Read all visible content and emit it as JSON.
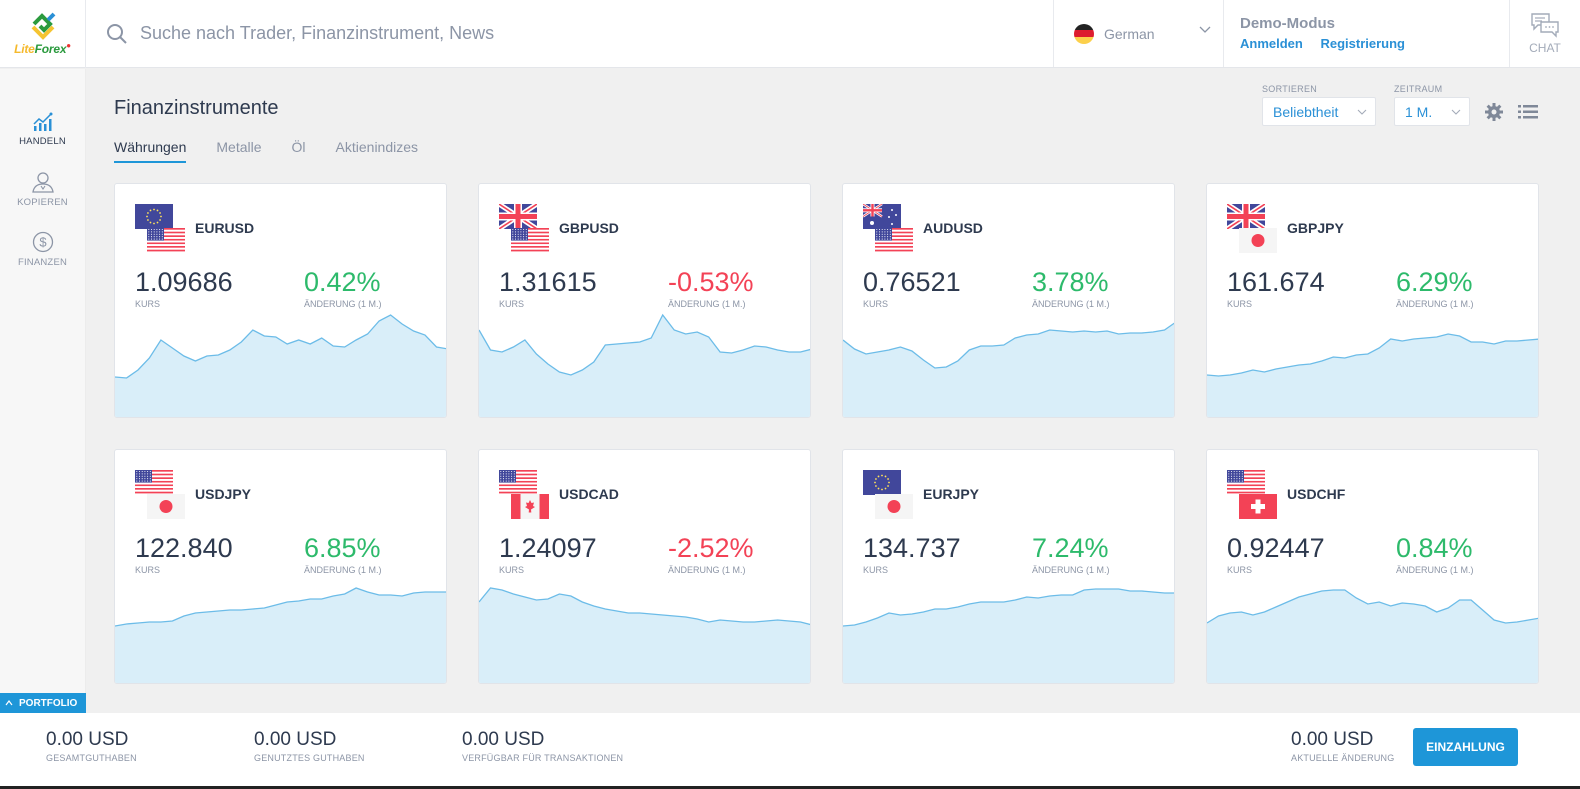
{
  "header": {
    "logo": {
      "part1": "Lite",
      "part2": "Forex"
    },
    "search": {
      "placeholder": "Suche nach Trader, Finanzinstrument, News",
      "icon": "search-icon"
    },
    "language": {
      "label": "German",
      "icon": "de-flag-icon"
    },
    "account": {
      "mode": "Demo-Modus",
      "login": "Anmelden",
      "register": "Registrierung"
    },
    "chat": {
      "label": "CHAT",
      "icon": "chat-icon"
    }
  },
  "sidebar": {
    "items": [
      {
        "label": "HANDELN",
        "icon": "trading-chart-icon",
        "active": true
      },
      {
        "label": "KOPIEREN",
        "icon": "user-icon",
        "active": false
      },
      {
        "label": "FINANZEN",
        "icon": "dollar-icon",
        "active": false
      }
    ],
    "portfolio": "PORTFOLIO"
  },
  "main": {
    "title": "Finanzinstrumente",
    "tabs": [
      {
        "label": "Währungen",
        "active": true
      },
      {
        "label": "Metalle",
        "active": false
      },
      {
        "label": "Öl",
        "active": false
      },
      {
        "label": "Aktienindizes",
        "active": false
      }
    ],
    "sort": {
      "label": "SORTIEREN",
      "value": "Beliebtheit"
    },
    "period": {
      "label": "ZEITRAUM",
      "value": "1 M."
    },
    "rate_label": "KURS",
    "change_label": "ÄNDERUNG (1 M.)"
  },
  "instruments": [
    {
      "pair": "EURUSD",
      "flags": [
        "eu",
        "us"
      ],
      "rate": "1.09686",
      "change": "0.42%",
      "direction": "up"
    },
    {
      "pair": "GBPUSD",
      "flags": [
        "gb",
        "us"
      ],
      "rate": "1.31615",
      "change": "-0.53%",
      "direction": "down"
    },
    {
      "pair": "AUDUSD",
      "flags": [
        "au",
        "us"
      ],
      "rate": "0.76521",
      "change": "3.78%",
      "direction": "up"
    },
    {
      "pair": "GBPJPY",
      "flags": [
        "gb",
        "jp"
      ],
      "rate": "161.674",
      "change": "6.29%",
      "direction": "up"
    },
    {
      "pair": "USDJPY",
      "flags": [
        "us",
        "jp"
      ],
      "rate": "122.840",
      "change": "6.85%",
      "direction": "up"
    },
    {
      "pair": "USDCAD",
      "flags": [
        "us",
        "ca"
      ],
      "rate": "1.24097",
      "change": "-2.52%",
      "direction": "down"
    },
    {
      "pair": "EURJPY",
      "flags": [
        "eu",
        "jp"
      ],
      "rate": "134.737",
      "change": "7.24%",
      "direction": "up"
    },
    {
      "pair": "USDCHF",
      "flags": [
        "us",
        "ch"
      ],
      "rate": "0.92447",
      "change": "0.84%",
      "direction": "up"
    }
  ],
  "sparklines": [
    [
      65,
      66,
      58,
      46,
      28,
      36,
      44,
      49,
      44,
      43,
      38,
      30,
      18,
      24,
      25,
      32,
      28,
      32,
      26,
      34,
      35,
      28,
      22,
      9,
      3,
      12,
      19,
      23,
      35,
      37
    ],
    [
      18,
      38,
      40,
      35,
      28,
      42,
      52,
      60,
      63,
      58,
      50,
      33,
      32,
      31,
      30,
      26,
      3,
      18,
      22,
      20,
      25,
      40,
      41,
      38,
      34,
      35,
      38,
      40,
      40,
      37
    ],
    [
      28,
      37,
      42,
      40,
      38,
      35,
      39,
      48,
      56,
      55,
      49,
      38,
      34,
      34,
      33,
      26,
      23,
      22,
      18,
      19,
      20,
      19,
      20,
      19,
      22,
      21,
      21,
      20,
      18,
      10
    ],
    [
      63,
      64,
      63,
      61,
      58,
      60,
      57,
      55,
      53,
      52,
      49,
      45,
      46,
      43,
      42,
      36,
      27,
      29,
      27,
      26,
      25,
      22,
      24,
      30,
      30,
      32,
      29,
      29,
      28,
      27
    ],
    [
      48,
      46,
      45,
      44,
      44,
      43,
      38,
      35,
      34,
      33,
      32,
      32,
      31,
      30,
      27,
      24,
      23,
      21,
      21,
      18,
      16,
      10,
      14,
      17,
      17,
      18,
      15,
      14,
      14,
      14
    ],
    [
      24,
      10,
      12,
      16,
      19,
      22,
      21,
      16,
      18,
      24,
      28,
      31,
      33,
      35,
      35,
      36,
      37,
      38,
      39,
      41,
      44,
      42,
      43,
      44,
      44,
      43,
      42,
      43,
      44,
      47
    ],
    [
      48,
      47,
      44,
      40,
      35,
      37,
      36,
      34,
      31,
      31,
      29,
      26,
      24,
      24,
      24,
      22,
      19,
      20,
      18,
      17,
      17,
      12,
      11,
      11,
      11,
      13,
      13,
      14,
      15,
      15
    ],
    [
      45,
      38,
      35,
      34,
      37,
      34,
      29,
      24,
      19,
      16,
      13,
      12,
      12,
      20,
      26,
      24,
      28,
      25,
      26,
      28,
      34,
      30,
      22,
      22,
      32,
      42,
      45,
      44,
      42,
      40
    ]
  ],
  "footer": {
    "stats": [
      {
        "value": "0.00 USD",
        "label": "GESAMTGUTHABEN"
      },
      {
        "value": "0.00 USD",
        "label": "GENUTZTES GUTHABEN"
      },
      {
        "value": "0.00 USD",
        "label": "VERFÜGBAR FÜR TRANSAKTIONEN"
      },
      {
        "value": "0.00 USD",
        "label": "AKTUELLE ÄNDERUNG"
      }
    ],
    "deposit": "EINZAHLUNG"
  },
  "colors": {
    "accent": "#1e96d8",
    "up": "#2dba6b",
    "down": "#f34256",
    "spark_line": "#6cbce8",
    "spark_fill": "#d9eef9"
  }
}
